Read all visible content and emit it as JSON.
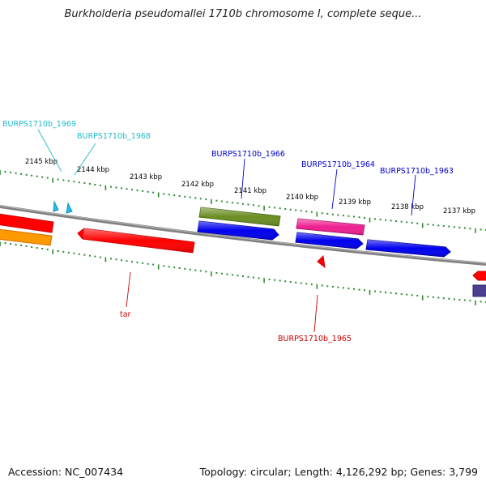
{
  "title": "Burkholderia pseudomallei 1710b chromosome I, complete seque...",
  "footer": {
    "accession": "Accession: NC_007434",
    "topology": "Topology: circular; Length: 4,126,292 bp; Genes: 3,799"
  },
  "tick_labels": [
    "2145 kbp",
    "2144 kbp",
    "2143 kbp",
    "2142 kbp",
    "2141 kbp",
    "2140 kbp",
    "2139 kbp",
    "2138 kbp",
    "2137 kbp"
  ],
  "gene_labels": {
    "burps1710b_1969": "BURPS1710b_1969",
    "burps1710b_1968": "BURPS1710b_1968",
    "burps1710b_1966": "BURPS1710b_1966",
    "burps1710b_1964": "BURPS1710b_1964",
    "burps1710b_1963": "BURPS1710b_1963",
    "tar": "tar",
    "burps1710b_1965": "BURPS1710b_1965"
  },
  "colors": {
    "backbone": "#808080",
    "tick": "#2e8b2e",
    "red_gene": "#ff0000",
    "orange_gene": "#ff9900",
    "blue_gene": "#0000ee",
    "olive_gene": "#6b8e23",
    "magenta_gene": "#ee2090",
    "cyan_gene": "#22bbee",
    "navy_gene": "#4b3f8f",
    "label_cyan": "#22bbcc",
    "label_blue": "#0000cc",
    "label_red": "#cc0000"
  }
}
